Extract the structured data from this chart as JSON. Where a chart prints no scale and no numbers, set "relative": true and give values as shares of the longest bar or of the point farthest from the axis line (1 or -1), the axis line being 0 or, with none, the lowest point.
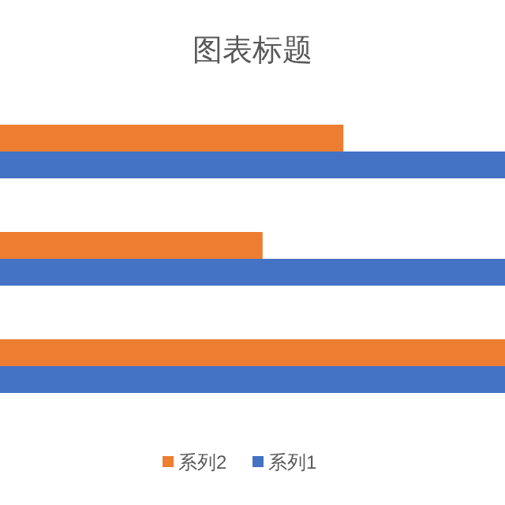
{
  "chart_data": {
    "type": "bar",
    "orientation": "horizontal",
    "relative": true,
    "title": "图表标题",
    "categories": [
      null,
      null,
      null
    ],
    "series": [
      {
        "name": "系列2",
        "color": "#ed7d31",
        "values": [
          0.68,
          0.52,
          1
        ]
      },
      {
        "name": "系列1",
        "color": "#4472c4",
        "values": [
          1,
          1,
          1
        ]
      }
    ],
    "legend": "bottom"
  }
}
